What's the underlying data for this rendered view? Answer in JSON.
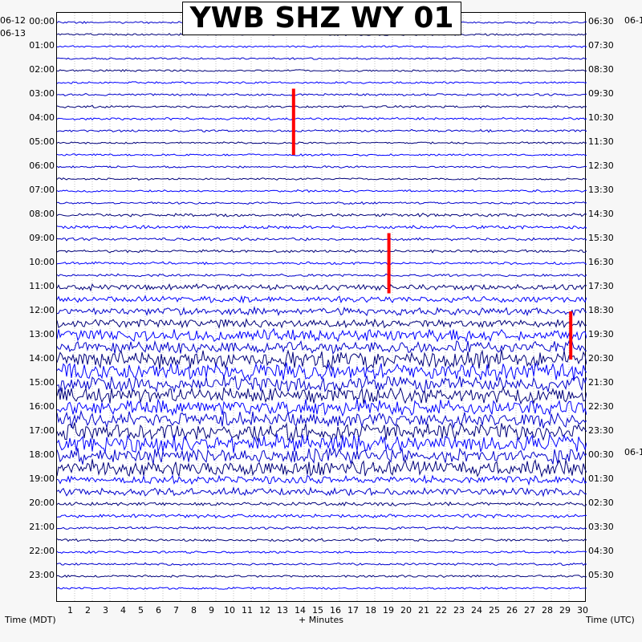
{
  "chart_data": {
    "type": "line",
    "title": "YWB SHZ WY 01",
    "xlabel": "+ Minutes",
    "left_axis_label": "Time (MDT)",
    "right_axis_label": "Time (UTC)",
    "xlim": [
      0,
      30
    ],
    "x_ticks": [
      "1",
      "2",
      "3",
      "4",
      "5",
      "6",
      "7",
      "8",
      "9",
      "10",
      "11",
      "12",
      "13",
      "14",
      "15",
      "16",
      "17",
      "18",
      "19",
      "20",
      "21",
      "22",
      "23",
      "24",
      "25",
      "26",
      "27",
      "28",
      "29",
      "30"
    ],
    "left_date_labels": [
      "06-12",
      "06-13"
    ],
    "right_date_labels": [
      "06-1",
      "06-1"
    ],
    "left_hour_labels": [
      "00:00",
      "01:00",
      "02:00",
      "03:00",
      "04:00",
      "05:00",
      "06:00",
      "07:00",
      "08:00",
      "09:00",
      "10:00",
      "11:00",
      "12:00",
      "13:00",
      "14:00",
      "15:00",
      "16:00",
      "17:00",
      "18:00",
      "19:00",
      "20:00",
      "21:00",
      "22:00",
      "23:00"
    ],
    "right_hour_labels": [
      "06:30",
      "07:30",
      "08:30",
      "09:30",
      "10:30",
      "11:30",
      "12:30",
      "13:30",
      "14:30",
      "15:30",
      "16:30",
      "17:30",
      "18:30",
      "19:30",
      "20:30",
      "21:30",
      "22:30",
      "23:30",
      "00:30",
      "01:30",
      "02:30",
      "03:30",
      "04:30",
      "05:30"
    ],
    "trace_colors": [
      "#0000cc",
      "#00007a",
      "#0000ff"
    ],
    "event_marker_color": "#ff0000",
    "event_markers": [
      {
        "minute": 13.4,
        "from_hour": 2.75,
        "to_hour": 5.5
      },
      {
        "minute": 18.8,
        "from_hour": 8.75,
        "to_hour": 11.25
      },
      {
        "minute": 29.1,
        "from_hour": 12.0,
        "to_hour": 14.0
      }
    ],
    "noise_levels_by_hour": [
      1,
      1,
      1,
      1.2,
      1.2,
      1,
      1,
      1.1,
      1.6,
      1.4,
      1.3,
      3,
      4,
      6,
      9,
      8,
      8,
      9,
      8,
      4,
      1.8,
      1.3,
      1.2,
      1.1
    ],
    "grid": true
  }
}
